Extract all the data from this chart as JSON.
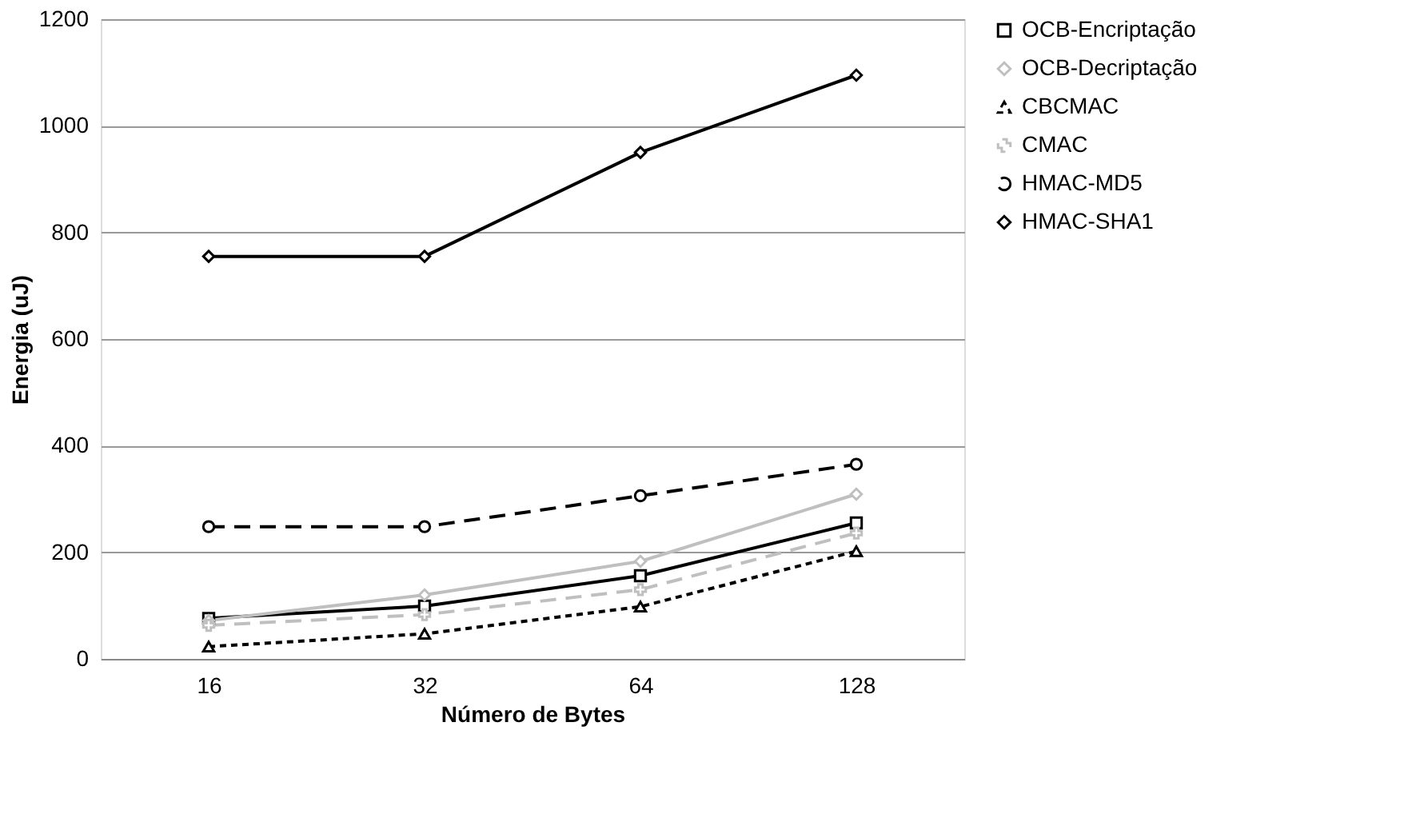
{
  "chart_data": {
    "type": "line",
    "xlabel": "Número de Bytes",
    "ylabel": "Energia (uJ)",
    "categories": [
      "16",
      "32",
      "64",
      "128"
    ],
    "ylim": [
      0,
      1200
    ],
    "yticks": [
      0,
      200,
      400,
      600,
      800,
      1000,
      1200
    ],
    "grid": "y",
    "legend": "right",
    "series": [
      {
        "name": "OCB-Encriptação",
        "color": "#000000",
        "marker": "square",
        "line_style": "solid",
        "values": [
          76,
          99,
          156,
          255
        ]
      },
      {
        "name": "OCB-Decriptação",
        "color": "#bfbfbf",
        "marker": "diamond",
        "line_style": "solid",
        "values": [
          72,
          120,
          183,
          309
        ]
      },
      {
        "name": "CBCMAC",
        "color": "#000000",
        "marker": "triangle",
        "line_style": "dotted",
        "values": [
          23,
          47,
          98,
          202
        ]
      },
      {
        "name": "CMAC",
        "color": "#bfbfbf",
        "marker": "cross",
        "line_style": "dashed",
        "values": [
          63,
          83,
          130,
          236
        ]
      },
      {
        "name": "HMAC-MD5",
        "color": "#000000",
        "marker": "circle",
        "line_style": "dashed",
        "values": [
          248,
          248,
          306,
          365
        ]
      },
      {
        "name": "HMAC-SHA1",
        "color": "#000000",
        "marker": "diamond",
        "line_style": "solid",
        "values": [
          755,
          755,
          950,
          1095
        ]
      }
    ]
  }
}
